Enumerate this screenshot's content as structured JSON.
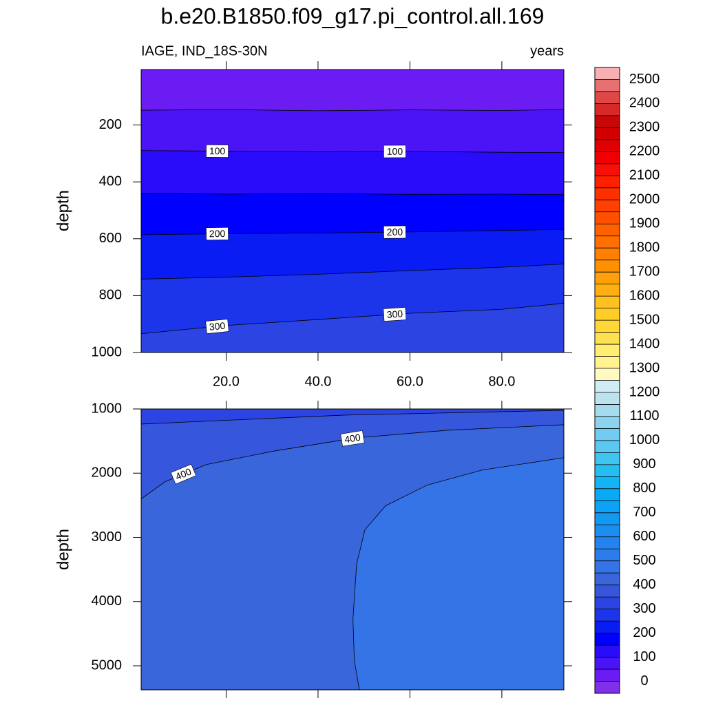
{
  "chart_data": [
    {
      "type": "contour",
      "title": "b.e20.B1850.f09_g17.pi_control.all.169",
      "subtitle_left": "IAGE, IND_18S-30N",
      "subtitle_right": "years",
      "ylabel": "depth",
      "xlim": [
        1.5,
        93.5
      ],
      "ylim": [
        5,
        1000
      ],
      "y_reversed": true,
      "xticks": [
        {
          "value": 20,
          "label": "20.0"
        },
        {
          "value": 40,
          "label": "40.0"
        },
        {
          "value": 60,
          "label": "60.0"
        },
        {
          "value": 80,
          "label": "80.0"
        }
      ],
      "yticks": [
        200,
        400,
        600,
        800,
        1000
      ],
      "contours": [
        {
          "level": 50,
          "x": [
            1.5,
            20,
            40,
            60,
            80,
            93.5
          ],
          "y": [
            148,
            146,
            150,
            147,
            149,
            146
          ]
        },
        {
          "level": 100,
          "x": [
            1.5,
            20,
            40,
            60,
            80,
            93.5
          ],
          "y": [
            290,
            292,
            294,
            293,
            296,
            297
          ]
        },
        {
          "level": 150,
          "x": [
            1.5,
            20,
            40,
            60,
            80,
            93.5
          ],
          "y": [
            440,
            443,
            441,
            444,
            443,
            445
          ]
        },
        {
          "level": 200,
          "x": [
            1.5,
            20,
            40,
            60,
            80,
            93.5
          ],
          "y": [
            586,
            582,
            580,
            576,
            571,
            567
          ]
        },
        {
          "level": 250,
          "x": [
            1.5,
            20,
            40,
            60,
            80,
            93.5
          ],
          "y": [
            742,
            735,
            725,
            712,
            700,
            689
          ]
        },
        {
          "level": 300,
          "x": [
            1.5,
            20,
            40,
            60,
            80,
            93.5
          ],
          "y": [
            934,
            905,
            884,
            862,
            848,
            827
          ]
        }
      ]
    },
    {
      "type": "contour",
      "ylabel": "depth",
      "xlim": [
        1.5,
        93.5
      ],
      "ylim": [
        1000,
        5375
      ],
      "y_reversed": true,
      "xticks": [
        20,
        40,
        60,
        80
      ],
      "yticks": [
        1000,
        2000,
        3000,
        4000,
        5000
      ],
      "contours": [
        {
          "level": 350,
          "x": [
            1.5,
            45.7,
            93.5
          ],
          "y": [
            1235,
            1096,
            1021
          ]
        },
        {
          "level": 400,
          "x": [
            1.5,
            6.7,
            15.7,
            30.7,
            48.4,
            68.1,
            93.5
          ],
          "y": [
            2401,
            2134,
            1866,
            1652,
            1449,
            1332,
            1246
          ]
        },
        {
          "level": 450,
          "x": [
            49,
            47.9,
            47.6,
            48.4,
            50.2,
            54.7,
            63.7,
            75.7,
            93.5
          ],
          "y": [
            5375,
            4914,
            4273,
            3417,
            2882,
            2508,
            2187,
            1952,
            1759
          ]
        }
      ]
    }
  ],
  "colorbar": {
    "levels": [
      0,
      50,
      100,
      150,
      200,
      250,
      300,
      350,
      400,
      450,
      500,
      550,
      600,
      650,
      700,
      750,
      800,
      850,
      900,
      950,
      1000,
      1050,
      1100,
      1150,
      1200,
      1250,
      1300,
      1350,
      1400,
      1450,
      1500,
      1550,
      1600,
      1650,
      1700,
      1750,
      1800,
      1850,
      1900,
      1950,
      2000,
      2050,
      2100,
      2150,
      2200,
      2250,
      2300,
      2350,
      2400,
      2450,
      2500
    ],
    "ticks": [
      0,
      100,
      200,
      300,
      400,
      500,
      600,
      700,
      800,
      900,
      1000,
      1100,
      1200,
      1300,
      1400,
      1500,
      1600,
      1700,
      1800,
      1900,
      2000,
      2100,
      2200,
      2300,
      2400,
      2500
    ],
    "colors": [
      "#8030e8",
      "#6a1cf2",
      "#4a14f6",
      "#2a0cfa",
      "#0000ff",
      "#0a1cf4",
      "#1c34ea",
      "#2c44e2",
      "#3656dc",
      "#3a66dc",
      "#3474e6",
      "#2c7cea",
      "#2484ee",
      "#1c8ef0",
      "#1498f2",
      "#0ca2f6",
      "#08aaf8",
      "#14b4f4",
      "#24bef2",
      "#40c4f0",
      "#5ac8f0",
      "#70ccf0",
      "#8cd4ec",
      "#a4dcee",
      "#bce4f0",
      "#d0ecf4",
      "#fffac0",
      "#fff490",
      "#ffee70",
      "#ffe050",
      "#ffd838",
      "#ffcc28",
      "#ffc020",
      "#ffb010",
      "#ffa008",
      "#ff9000",
      "#ff8000",
      "#ff7000",
      "#ff6000",
      "#ff5000",
      "#ff4000",
      "#ff3000",
      "#ff2000",
      "#f81008",
      "#f00000",
      "#e00000",
      "#d00000",
      "#c80808",
      "#d82828",
      "#e04848",
      "#e87070",
      "#f8b0b0"
    ]
  }
}
